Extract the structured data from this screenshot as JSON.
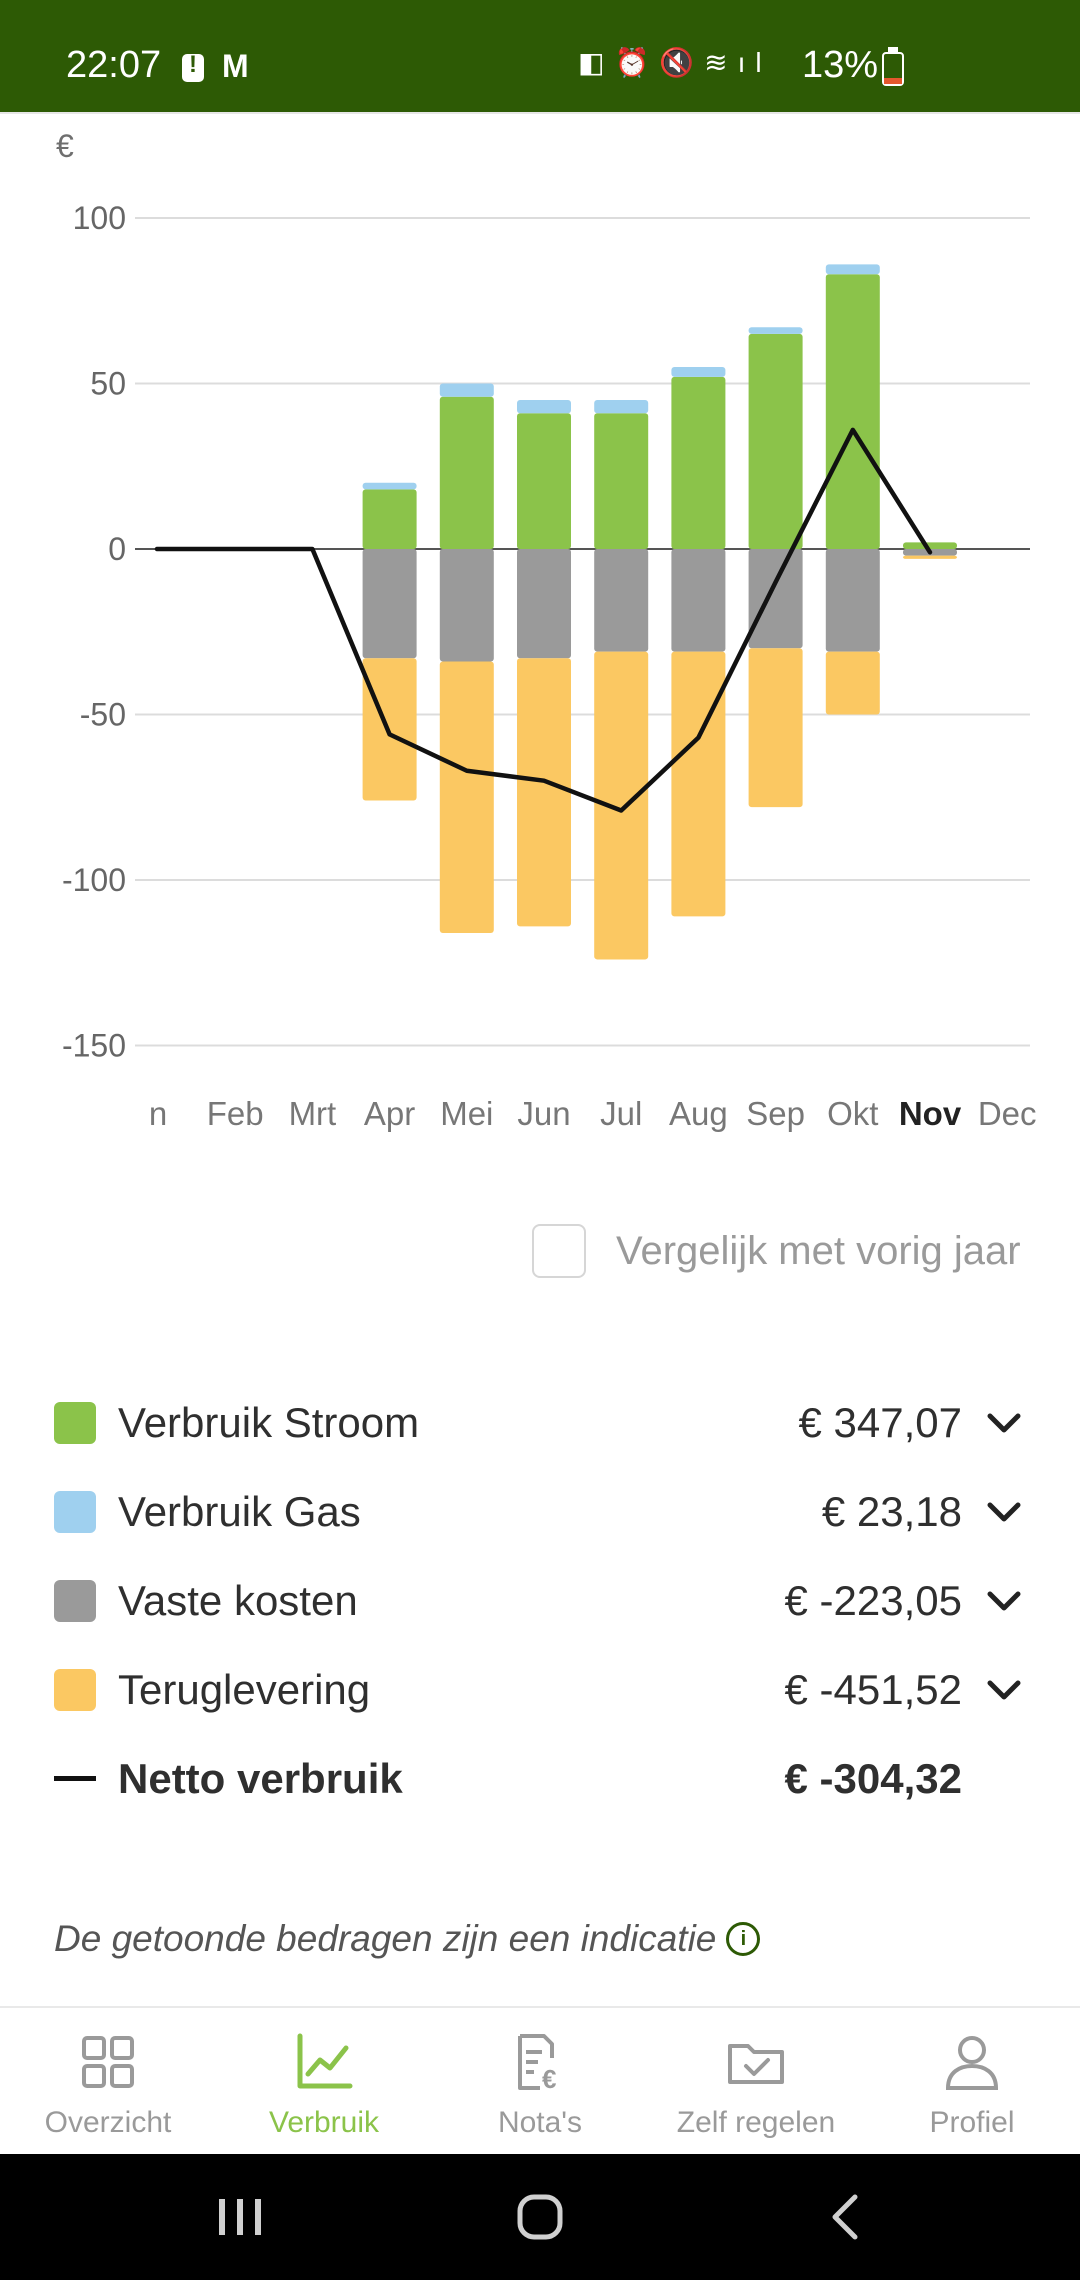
{
  "status_bar": {
    "time": "22:07",
    "battery_percent": "13%",
    "background": "#2d5a05"
  },
  "chart": {
    "y_unit": "€"
  },
  "chart_data": {
    "type": "bar",
    "stacked": true,
    "categories": [
      "Jan",
      "Feb",
      "Mrt",
      "Apr",
      "Mei",
      "Jun",
      "Jul",
      "Aug",
      "Sep",
      "Okt",
      "Nov",
      "Dec"
    ],
    "visible_tick_labels": [
      "n",
      "Feb",
      "Mrt",
      "Apr",
      "Mei",
      "Jun",
      "Jul",
      "Aug",
      "Sep",
      "Okt",
      "Nov",
      "Dec"
    ],
    "highlighted_category": "Nov",
    "ylim": [
      -150,
      100
    ],
    "yticks": [
      100,
      50,
      0,
      -50,
      -100,
      -150
    ],
    "ytick_labels": [
      "100",
      "50",
      "0",
      "-50",
      "-100",
      "-150"
    ],
    "grid": true,
    "series": [
      {
        "name": "Verbruik Stroom",
        "color": "#8bc34a",
        "values": [
          0,
          0,
          0,
          18,
          46,
          41,
          41,
          52,
          65,
          83,
          2,
          0
        ]
      },
      {
        "name": "Verbruik Gas",
        "color": "#9fd0ef",
        "values": [
          0,
          0,
          0,
          2,
          4,
          4,
          4,
          3,
          2,
          3,
          0,
          0
        ]
      },
      {
        "name": "Vaste kosten",
        "color": "#9a9a9a",
        "values": [
          0,
          0,
          0,
          -33,
          -34,
          -33,
          -31,
          -31,
          -30,
          -31,
          -2,
          0
        ]
      },
      {
        "name": "Teruglevering",
        "color": "#fbc862",
        "values": [
          0,
          0,
          0,
          -43,
          -82,
          -81,
          -93,
          -80,
          -48,
          -19,
          -1,
          0
        ]
      }
    ],
    "line": {
      "name": "Netto verbruik",
      "color": "#111111",
      "values": [
        0,
        0,
        0,
        -56,
        -67,
        -70,
        -79,
        -57,
        -10,
        36,
        -1,
        null
      ]
    }
  },
  "compare": {
    "label": "Vergelijk met vorig jaar",
    "checked": false
  },
  "legend": {
    "items": [
      {
        "label": "Verbruik Stroom",
        "value": "€ 347,07",
        "color": "#8bc34a"
      },
      {
        "label": "Verbruik Gas",
        "value": "€ 23,18",
        "color": "#9fd0ef"
      },
      {
        "label": "Vaste kosten",
        "value": "€ -223,05",
        "color": "#9a9a9a"
      },
      {
        "label": "Teruglevering",
        "value": "€ -451,52",
        "color": "#fbc862"
      }
    ],
    "total": {
      "label": "Netto verbruik",
      "value": "€ -304,32"
    }
  },
  "disclaimer": "De getoonde bedragen zijn een indicatie",
  "nav": {
    "items": [
      {
        "label": "Overzicht",
        "icon": "grid-icon"
      },
      {
        "label": "Verbruik",
        "icon": "chart-icon",
        "active": true
      },
      {
        "label": "Nota's",
        "icon": "invoice-icon"
      },
      {
        "label": "Zelf regelen",
        "icon": "folder-check-icon"
      },
      {
        "label": "Profiel",
        "icon": "person-icon"
      }
    ],
    "active_color": "#8bc34a"
  }
}
